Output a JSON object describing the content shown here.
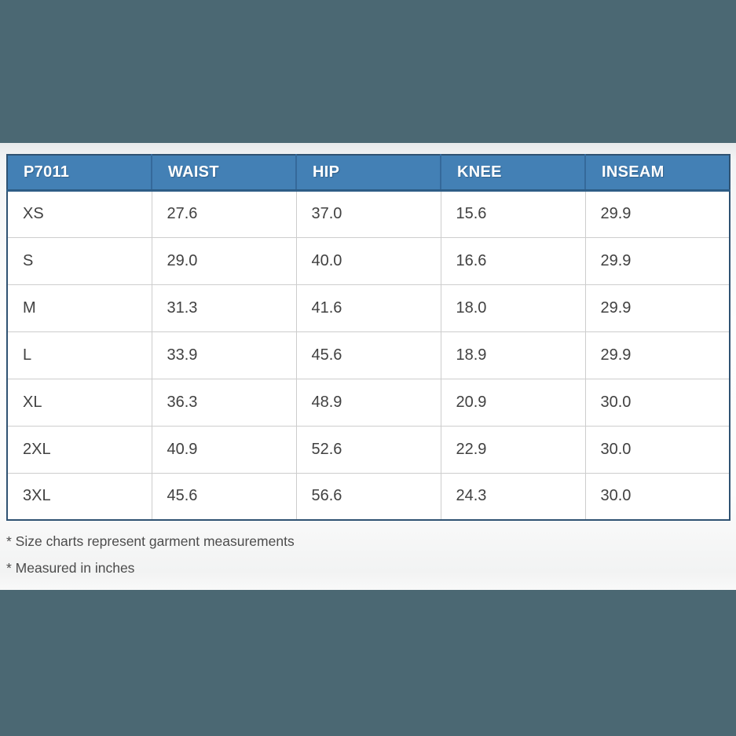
{
  "table": {
    "product_code": "P7011",
    "columns": [
      "P7011",
      "WAIST",
      "HIP",
      "KNEE",
      "INSEAM"
    ],
    "rows": [
      [
        "XS",
        "27.6",
        "37.0",
        "15.6",
        "29.9"
      ],
      [
        "S",
        "29.0",
        "40.0",
        "16.6",
        "29.9"
      ],
      [
        "M",
        "31.3",
        "41.6",
        "18.0",
        "29.9"
      ],
      [
        "L",
        "33.9",
        "45.6",
        "18.9",
        "29.9"
      ],
      [
        "XL",
        "36.3",
        "48.9",
        "20.9",
        "30.0"
      ],
      [
        "2XL",
        "40.9",
        "52.6",
        "22.9",
        "30.0"
      ],
      [
        "3XL",
        "45.6",
        "56.6",
        "24.3",
        "30.0"
      ]
    ]
  },
  "notes": [
    "* Size charts represent garment measurements",
    "* Measured in inches"
  ],
  "colors": {
    "band_bg": "#4b6873",
    "header_bg": "#4380b5",
    "header_border": "#2e5d86",
    "table_border": "#2f5272",
    "cell_border": "#cdcdcd",
    "cell_text": "#414141",
    "note_text": "#4c4c4c"
  }
}
